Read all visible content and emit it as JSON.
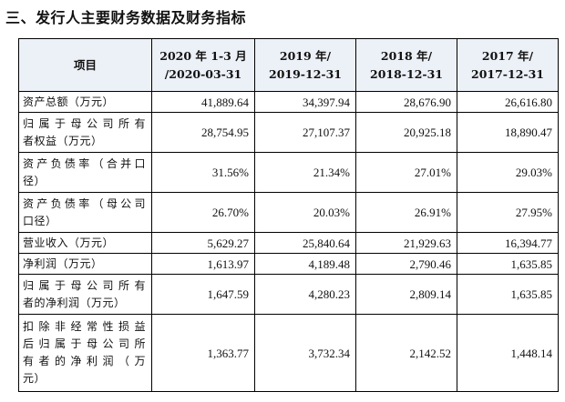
{
  "section_title": "三、发行人主要财务数据及财务指标",
  "table": {
    "headers": [
      {
        "lines": [
          "项目"
        ]
      },
      {
        "lines": [
          "2020 年 1-3 月",
          "/2020-03-31"
        ]
      },
      {
        "lines": [
          "2019 年/",
          "2019-12-31"
        ]
      },
      {
        "lines": [
          "2018 年/",
          "2018-12-31"
        ]
      },
      {
        "lines": [
          "2017 年/",
          "2017-12-31"
        ]
      }
    ],
    "rows": [
      {
        "label_lines": [
          "资产总额（万元）"
        ],
        "values": [
          "41,889.64",
          "34,397.94",
          "28,676.90",
          "26,616.80"
        ]
      },
      {
        "label_lines": [
          "归属于母公司所有",
          "者权益（万元）"
        ],
        "values": [
          "28,754.95",
          "27,107.37",
          "20,925.18",
          "18,890.47"
        ]
      },
      {
        "label_lines": [
          "资产负债率（合并口",
          "径）"
        ],
        "values": [
          "31.56%",
          "21.34%",
          "27.01%",
          "29.03%"
        ]
      },
      {
        "label_lines": [
          "资产负债率（母公司",
          "口径）"
        ],
        "values": [
          "26.70%",
          "20.03%",
          "26.91%",
          "27.95%"
        ]
      },
      {
        "label_lines": [
          "营业收入（万元）"
        ],
        "values": [
          "5,629.27",
          "25,840.64",
          "21,929.63",
          "16,394.77"
        ]
      },
      {
        "label_lines": [
          "净利润（万元）"
        ],
        "values": [
          "1,613.97",
          "4,189.48",
          "2,790.46",
          "1,635.85"
        ]
      },
      {
        "label_lines": [
          "归属于母公司所有",
          "者的净利润（万元）"
        ],
        "values": [
          "1,647.59",
          "4,280.23",
          "2,809.14",
          "1,635.85"
        ]
      },
      {
        "label_lines": [
          "扣除非经常性损益",
          "后归属于母公司所",
          "有者的净利润（万",
          "元）"
        ],
        "values": [
          "1,363.77",
          "3,732.34",
          "2,142.52",
          "1,448.14"
        ]
      }
    ]
  }
}
